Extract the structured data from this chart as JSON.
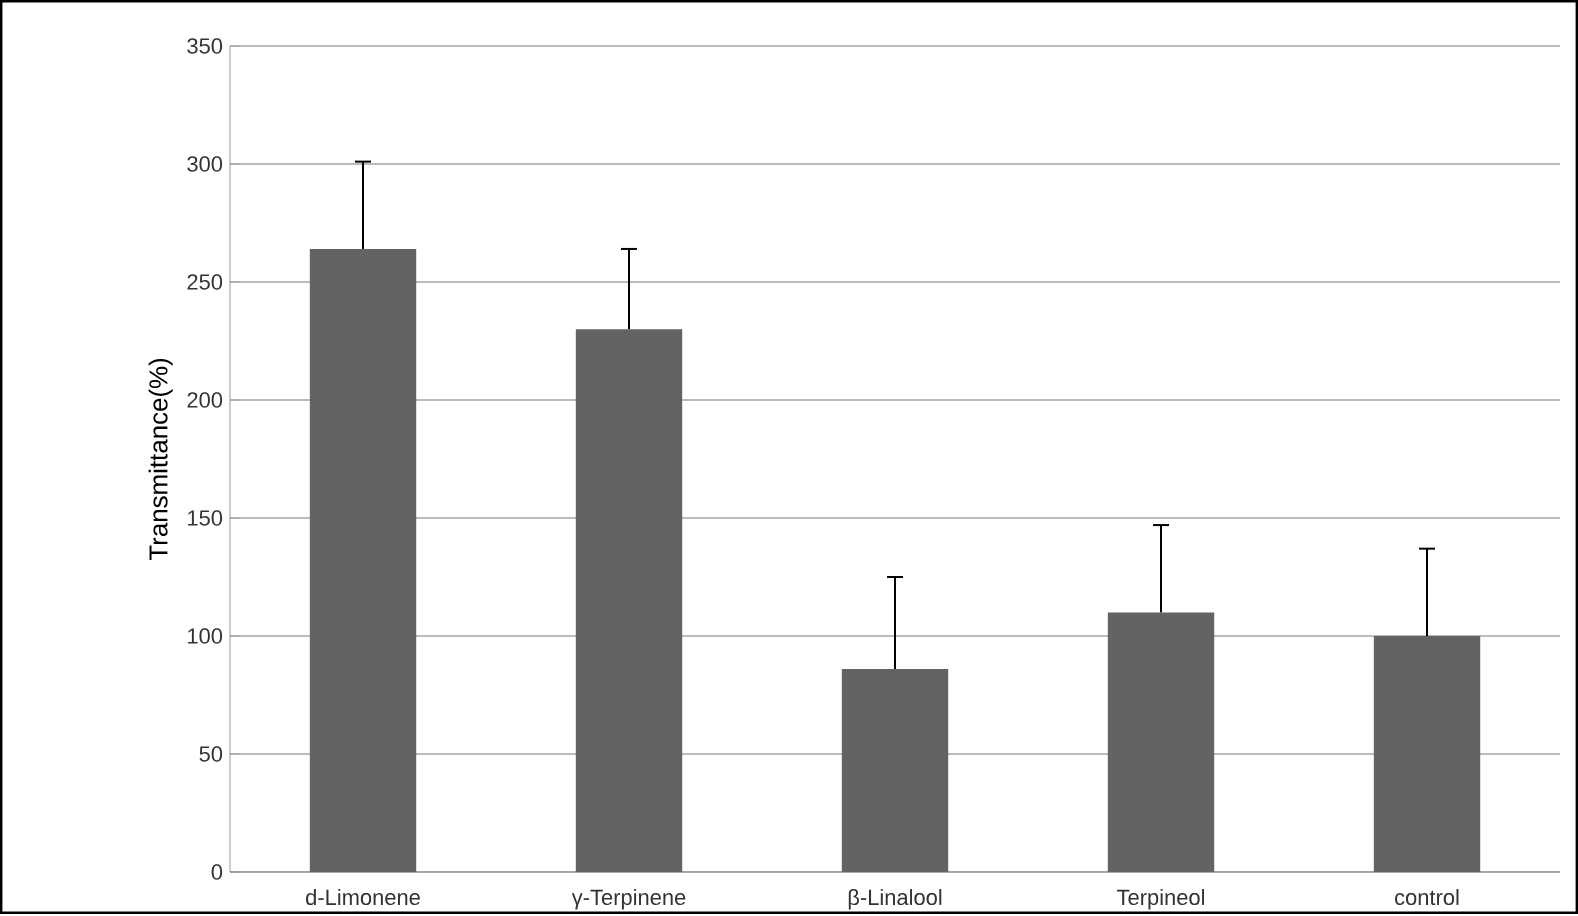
{
  "chart_data": {
    "type": "bar",
    "ylabel": "Transmittance(%)",
    "categories": [
      "d-Limonene",
      "γ-Terpinene",
      "β-Linalool",
      "Terpineol",
      "control"
    ],
    "values": [
      264,
      230,
      86,
      110,
      100
    ],
    "errors": [
      [
        264,
        301
      ],
      [
        230,
        264
      ],
      [
        86,
        125
      ],
      [
        110,
        147
      ],
      [
        100,
        137
      ]
    ],
    "color": "#636363",
    "ylim": [
      0,
      350
    ],
    "yticks": [
      0,
      50,
      100,
      150,
      200,
      250,
      300,
      350
    ],
    "grid": "y"
  }
}
